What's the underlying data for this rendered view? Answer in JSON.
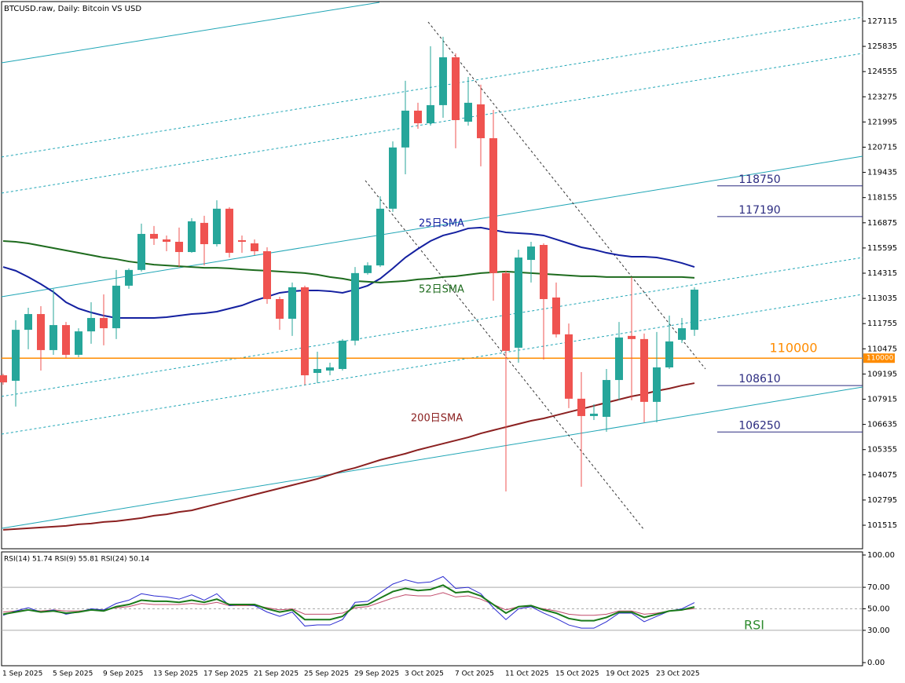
{
  "chart_data": [
    {
      "type": "candlestick",
      "title": "BTCUSD.raw, Daily:  Bitcoin VS USD",
      "categories": [
        "1 Sep 2025",
        null,
        null,
        null,
        "5 Sep 2025",
        null,
        null,
        null,
        "9 Sep 2025",
        null,
        null,
        null,
        "13 Sep 2025",
        null,
        null,
        null,
        "17 Sep 2025",
        null,
        null,
        null,
        "21 Sep 2025",
        null,
        null,
        null,
        "25 Sep 2025",
        null,
        null,
        null,
        "29 Sep 2025",
        null,
        null,
        null,
        "3 Oct 2025",
        null,
        null,
        null,
        "7 Oct 2025",
        null,
        null,
        null,
        "11 Oct 2025",
        null,
        null,
        null,
        "15 Oct 2025",
        null,
        null,
        null,
        "19 Oct 2025",
        null,
        null,
        null,
        "23 Oct 2025",
        null,
        null,
        null
      ],
      "open": [
        109130,
        108850,
        111440,
        112240,
        110410,
        111680,
        110170,
        111360,
        112040,
        111520,
        113680,
        114480,
        116310,
        116030,
        115910,
        115390,
        116870,
        115790,
        117590,
        115990,
        115830,
        115430,
        113000,
        112000,
        113600,
        109250,
        109370,
        109450,
        110890,
        114320,
        114710,
        117590,
        120700,
        122570,
        121930,
        122850,
        125280,
        122010,
        122890,
        121170,
        114320,
        110530,
        114990,
        115750,
        113080,
        111210,
        107940,
        107060,
        107020,
        108890,
        111130,
        110970,
        107780,
        109530,
        110930,
        111440
      ],
      "high": [
        109210,
        111920,
        112560,
        112640,
        113520,
        111840,
        111520,
        112840,
        113240,
        114480,
        114560,
        116830,
        116710,
        116230,
        116630,
        117110,
        117230,
        118020,
        117670,
        116230,
        116030,
        115630,
        113120,
        113840,
        113680,
        110330,
        109770,
        110970,
        114630,
        114870,
        118220,
        121010,
        124090,
        122970,
        125840,
        126320,
        125480,
        124280,
        123890,
        122610,
        114440,
        115510,
        115910,
        115830,
        113840,
        111760,
        109290,
        107660,
        109450,
        111840,
        114120,
        111250,
        111330,
        112160,
        112040,
        113600
      ],
      "low": [
        108650,
        107540,
        110450,
        109370,
        110170,
        110010,
        110050,
        110730,
        110650,
        110970,
        113520,
        114400,
        115750,
        115430,
        114630,
        115350,
        114710,
        115670,
        115110,
        115350,
        115230,
        112760,
        111440,
        111130,
        108650,
        108730,
        109130,
        109370,
        110650,
        114240,
        114630,
        117430,
        119340,
        121650,
        121810,
        122210,
        120660,
        121810,
        119740,
        112920,
        103230,
        109770,
        113840,
        109930,
        111050,
        107460,
        103470,
        106860,
        106260,
        107860,
        107860,
        106740,
        106740,
        109450,
        110770,
        111130
      ],
      "close": [
        108770,
        111440,
        112240,
        110410,
        111680,
        110170,
        111360,
        112040,
        111520,
        113680,
        114480,
        116310,
        116070,
        115910,
        115390,
        116950,
        115790,
        117590,
        115350,
        115910,
        115430,
        113000,
        112000,
        113600,
        109130,
        109450,
        109530,
        110890,
        114320,
        114710,
        117590,
        120700,
        122570,
        121930,
        122850,
        125280,
        122090,
        122970,
        121170,
        114320,
        110370,
        115110,
        115670,
        113000,
        111210,
        107940,
        107060,
        107180,
        108890,
        111050,
        110970,
        107780,
        109530,
        110850,
        111520,
        113480
      ],
      "up_color": "#26a69a",
      "down_color": "#ef5350",
      "overlays": [
        {
          "name": "25日SMA",
          "color": "#1420a0",
          "values": [
            114630,
            114440,
            114120,
            113760,
            113360,
            112840,
            112520,
            112320,
            112160,
            112040,
            112040,
            112040,
            112040,
            112080,
            112160,
            112240,
            112280,
            112360,
            112520,
            112680,
            112920,
            113120,
            113320,
            113400,
            113440,
            113440,
            113400,
            113320,
            113480,
            113680,
            114040,
            114560,
            115110,
            115550,
            115950,
            116230,
            116390,
            116590,
            116630,
            116510,
            116390,
            116350,
            116310,
            116230,
            116030,
            115830,
            115630,
            115510,
            115350,
            115230,
            115150,
            115150,
            115110,
            114990,
            114830,
            114630
          ]
        },
        {
          "name": "52日SMA",
          "color": "#1e6b1e",
          "values": [
            115950,
            115910,
            115830,
            115710,
            115590,
            115470,
            115350,
            115230,
            115110,
            115030,
            114910,
            114830,
            114750,
            114710,
            114670,
            114630,
            114590,
            114590,
            114560,
            114510,
            114470,
            114440,
            114400,
            114360,
            114320,
            114240,
            114120,
            114040,
            113920,
            113880,
            113840,
            113880,
            113920,
            114000,
            114040,
            114120,
            114160,
            114240,
            114320,
            114360,
            114400,
            114360,
            114320,
            114280,
            114240,
            114200,
            114160,
            114160,
            114120,
            114120,
            114120,
            114120,
            114120,
            114120,
            114120,
            114080
          ]
        },
        {
          "name": "200日SMA",
          "color": "#8b2020",
          "values": [
            101280,
            101320,
            101360,
            101400,
            101440,
            101480,
            101560,
            101600,
            101680,
            101720,
            101800,
            101880,
            102000,
            102070,
            102190,
            102270,
            102430,
            102590,
            102750,
            102910,
            103070,
            103230,
            103390,
            103550,
            103710,
            103870,
            104070,
            104270,
            104430,
            104630,
            104830,
            104990,
            105150,
            105340,
            105500,
            105660,
            105820,
            105980,
            106180,
            106340,
            106500,
            106660,
            106820,
            106940,
            107100,
            107260,
            107420,
            107580,
            107740,
            107900,
            108060,
            108180,
            108340,
            108460,
            108610,
            108730
          ]
        }
      ],
      "hlines": [
        {
          "value": 118750,
          "color": "#2b2b80",
          "span": "right"
        },
        {
          "value": 117190,
          "color": "#2b2b80",
          "span": "right"
        },
        {
          "value": 110000,
          "color": "#ff8c00",
          "span": "full"
        },
        {
          "value": 108610,
          "color": "#2b2b80",
          "span": "right"
        },
        {
          "value": 106250,
          "color": "#2b2b80",
          "span": "right"
        }
      ],
      "ylim": [
        100320,
        128110
      ],
      "yticks": [
        127115,
        125835,
        124555,
        123275,
        121995,
        120715,
        119435,
        118155,
        116875,
        115595,
        114315,
        113035,
        111755,
        110475,
        109195,
        107915,
        106635,
        105355,
        104075,
        102795,
        101515
      ]
    },
    {
      "type": "line",
      "title": "RSI(14) 51.74 RSI(9) 55.81 RSI(24) 50.14",
      "annotation": "RSI",
      "series": [
        {
          "color": "#c04a6a",
          "width": 1,
          "values": [
            47,
            48,
            49,
            48,
            49,
            48,
            48,
            49,
            49,
            51,
            52,
            55,
            54,
            54,
            54,
            55,
            54,
            56,
            53,
            53,
            53,
            51,
            49,
            50,
            45,
            45,
            45,
            46,
            51,
            52,
            56,
            60,
            63,
            62,
            62,
            65,
            61,
            62,
            59,
            54,
            49,
            52,
            52,
            50,
            48,
            45,
            44,
            44,
            45,
            48,
            48,
            45,
            46,
            48,
            49,
            50.14
          ]
        },
        {
          "color": "#2a2ad0",
          "width": 1,
          "values": [
            44,
            48,
            51,
            47,
            49,
            45,
            47,
            50,
            49,
            55,
            58,
            64,
            62,
            61,
            59,
            63,
            58,
            64,
            53,
            54,
            53,
            47,
            43,
            47,
            34,
            35,
            35,
            40,
            56,
            57,
            65,
            73,
            77,
            74,
            75,
            80,
            69,
            70,
            64,
            51,
            40,
            50,
            52,
            46,
            41,
            35,
            32,
            32,
            38,
            46,
            46,
            38,
            43,
            48,
            50,
            55.81
          ]
        },
        {
          "color": "#1a7a1a",
          "width": 2,
          "values": [
            45,
            47,
            49,
            47,
            48,
            46,
            47,
            49,
            48,
            52,
            54,
            58,
            57,
            57,
            56,
            58,
            56,
            59,
            54,
            54,
            54,
            50,
            47,
            49,
            40,
            40,
            40,
            43,
            53,
            54,
            60,
            66,
            69,
            67,
            68,
            72,
            65,
            66,
            62,
            54,
            46,
            52,
            53,
            49,
            46,
            41,
            39,
            39,
            42,
            47,
            47,
            42,
            45,
            48,
            49,
            51.74
          ]
        }
      ],
      "levels": [
        70,
        50,
        30
      ],
      "ylim": [
        -2.9,
        102.9
      ],
      "yticks": [
        {
          "value": 100,
          "label": "100.00"
        },
        {
          "value": 70,
          "label": "70.00"
        },
        {
          "value": 50,
          "label": "50.00"
        },
        {
          "value": 30,
          "label": "30.00"
        },
        {
          "value": 0,
          "label": "0.00"
        }
      ]
    }
  ]
}
